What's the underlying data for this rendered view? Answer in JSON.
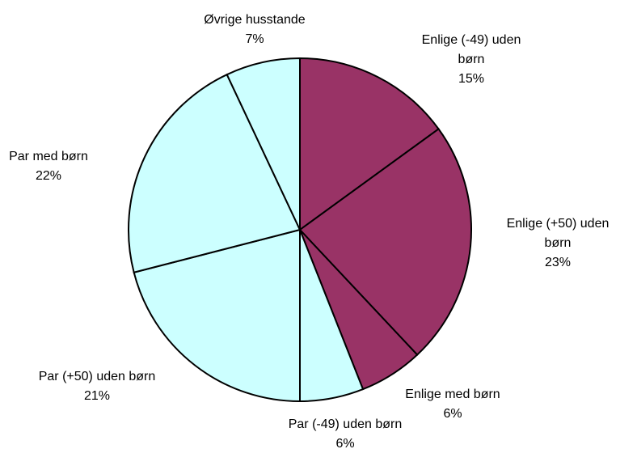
{
  "chart_data": {
    "type": "pie",
    "categories": [
      "Enlige (-49) uden børn",
      "Enlige (+50) uden børn",
      "Enlige med børn",
      "Par (-49) uden børn",
      "Par (+50) uden børn",
      "Par med børn",
      "Øvrige husstande"
    ],
    "values": [
      15,
      23,
      6,
      6,
      21,
      22,
      7
    ],
    "value_labels": [
      "15%",
      "23%",
      "6%",
      "6%",
      "21%",
      "22%",
      "7%"
    ],
    "colors": [
      "#993366",
      "#993366",
      "#993366",
      "#ccffff",
      "#ccffff",
      "#ccffff",
      "#ccffff"
    ]
  }
}
